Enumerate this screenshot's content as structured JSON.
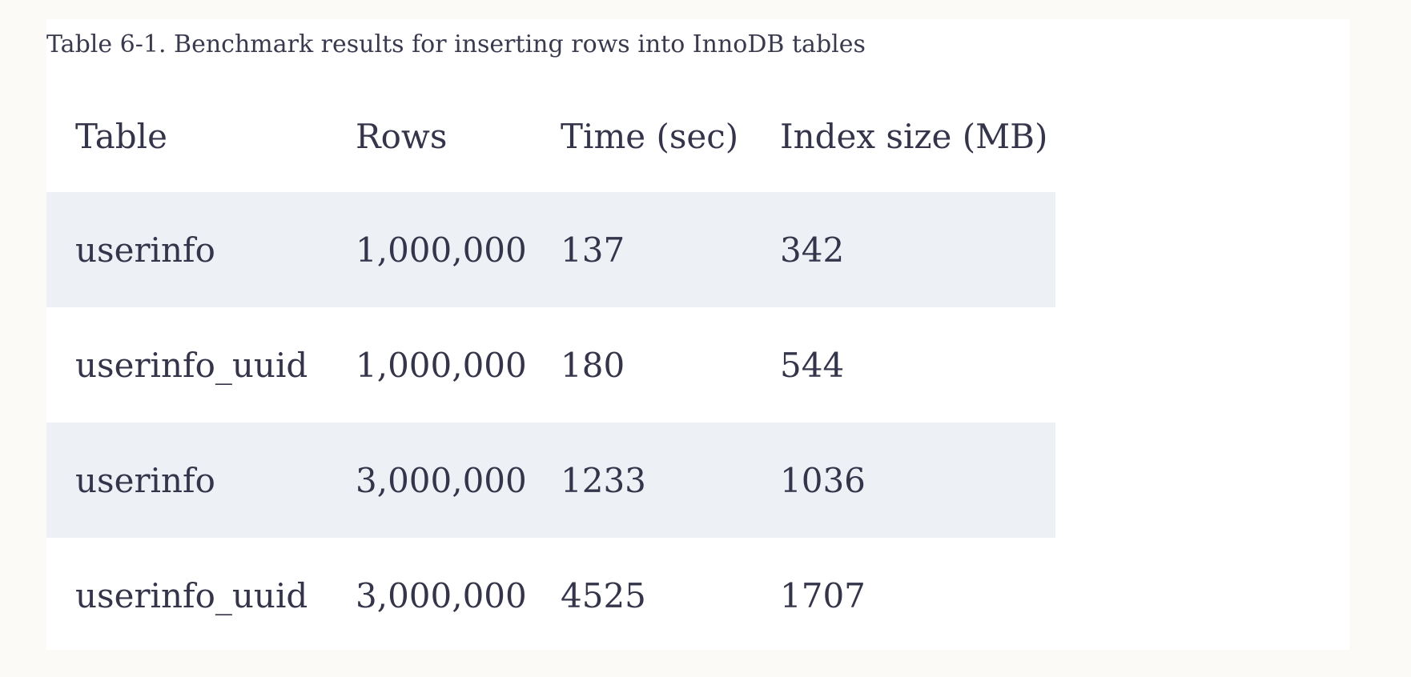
{
  "caption": "Table 6-1. Benchmark results for inserting rows into InnoDB tables",
  "table": {
    "headers": [
      "Table",
      "Rows",
      "Time (sec)",
      "Index size (MB)"
    ],
    "rows": [
      [
        "userinfo",
        "1,000,000",
        "137",
        "342"
      ],
      [
        "userinfo_uuid",
        "1,000,000",
        "180",
        "544"
      ],
      [
        "userinfo",
        "3,000,000",
        "1233",
        "1036"
      ],
      [
        "userinfo_uuid",
        "3,000,000",
        "4525",
        "1707"
      ]
    ]
  },
  "colors": {
    "page_background": "#fbfaf7",
    "panel_background": "#ffffff",
    "row_shade": "#edf0f5",
    "text": "#34344a"
  }
}
